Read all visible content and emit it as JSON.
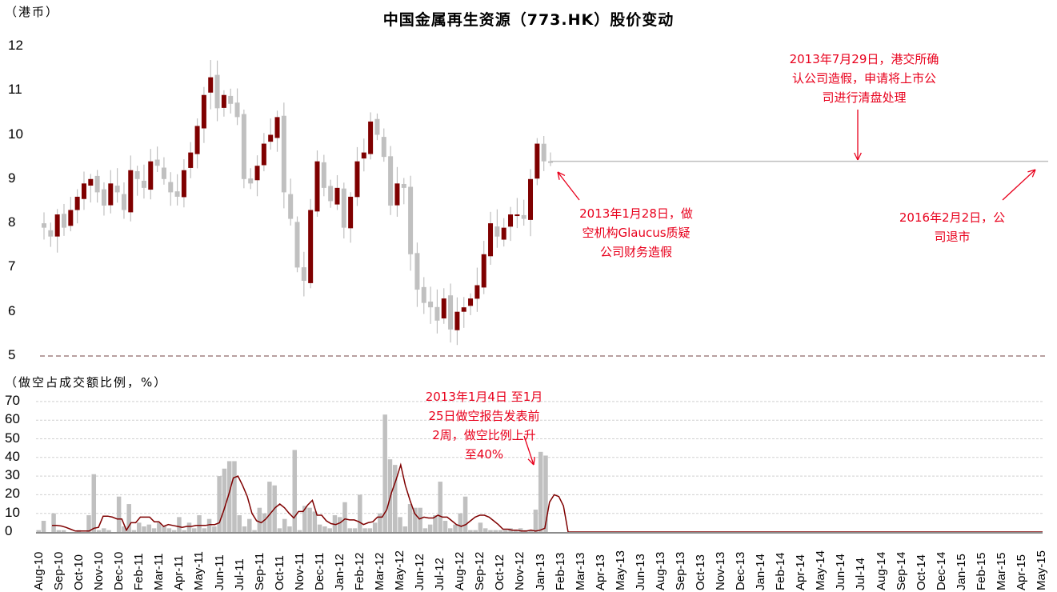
{
  "title": "中国金属再生资源（773.HK）股价变动",
  "upper_unit": "（港币）",
  "lower_unit": "（做空占成交额比例，%）",
  "colors": {
    "up": "#7f0000",
    "down": "#c0c0c0",
    "line": "#7f0000",
    "annotation": "#e8001c",
    "flat_line": "#bfbfbf",
    "axis_dash": "#a08080"
  },
  "annotations": {
    "a1": [
      "2013年7月29日，港交所确",
      "认公司造假，申请将上市公",
      "司进行清盘处理"
    ],
    "a2": [
      "2013年1月28日，做",
      "空机构Glaucus质疑",
      "公司财务造假"
    ],
    "a3": [
      "2016年2月2日，公",
      "司退市"
    ],
    "a4": [
      "2013年1月4日 至1月",
      "25日做空报告发表前",
      "2周，做空比例上升",
      "至40%"
    ]
  },
  "chart_data": [
    {
      "type": "candlestick",
      "title": "中国金属再生资源（773.HK）股价变动",
      "ylabel": "港币",
      "ylim": [
        5,
        12
      ],
      "yticks": [
        5,
        6,
        7,
        8,
        9,
        10,
        11,
        12
      ],
      "x_labels": [
        "Aug-10",
        "Sep-10",
        "Oct-10",
        "Nov-10",
        "Dec-10",
        "Feb-11",
        "Mar-11",
        "Apr-11",
        "May-11",
        "Jun-11",
        "Jul-11",
        "Sep-11",
        "Oct-11",
        "Nov-11",
        "Dec-11",
        "Jan-12",
        "Feb-12",
        "Mar-12",
        "May-12",
        "Jun-12",
        "Jul-12",
        "Aug-12",
        "Sep-12",
        "Oct-12",
        "Nov-12",
        "Jan-13",
        "Feb-13",
        "Mar-13",
        "Apr-13",
        "May-13",
        "Jun-13",
        "Aug-13",
        "Sep-13",
        "Oct-13",
        "Nov-13",
        "Dec-13",
        "Jan-14",
        "Feb-14",
        "Apr-14",
        "May-14",
        "Jun-14",
        "Jul-14",
        "Aug-14",
        "Sep-14",
        "Oct-14",
        "Dec-14",
        "Jan-15",
        "Feb-15",
        "Mar-15",
        "Apr-15",
        "May-15"
      ],
      "approx_close_path": [
        7.9,
        7.7,
        8.2,
        7.9,
        8.3,
        8.6,
        8.9,
        9.0,
        8.7,
        8.4,
        8.9,
        8.7,
        8.3,
        9.2,
        9.0,
        8.8,
        9.4,
        9.3,
        9.0,
        8.7,
        8.6,
        9.2,
        9.6,
        10.2,
        10.9,
        11.3,
        10.6,
        10.9,
        10.7,
        10.4,
        9.0,
        8.9,
        9.3,
        9.8,
        10.0,
        10.4,
        8.7,
        8.1,
        7.0,
        6.7,
        8.3,
        9.4,
        8.8,
        8.5,
        8.8,
        7.9,
        8.6,
        9.4,
        9.6,
        10.3,
        10.0,
        9.5,
        8.4,
        8.9,
        8.8,
        7.3,
        6.5,
        6.2,
        6.1,
        5.8,
        6.3,
        5.6,
        6.0,
        6.1,
        6.3,
        6.6,
        7.3,
        8.0,
        7.7,
        7.9,
        8.2,
        8.2,
        8.1,
        9.0,
        9.8,
        9.4,
        9.4
      ],
      "high": 11.7,
      "low": 5.2,
      "flat_after_suspension": 9.4,
      "annotation_points": [
        {
          "label": "2013-01-28 Glaucus report",
          "price": 9.4
        },
        {
          "label": "2013-07-29 HKEx confirms fraud",
          "price": 9.4
        },
        {
          "label": "2016-02-02 delisted",
          "price": 9.4
        }
      ]
    },
    {
      "type": "bar+line",
      "ylabel": "做空占成交额比例，%",
      "ylim": [
        0,
        70
      ],
      "yticks": [
        0,
        10,
        20,
        30,
        40,
        50,
        60,
        70
      ],
      "series": [
        {
          "name": "short selling ratio (weekly, bars)",
          "values": [
            1,
            6,
            0,
            10,
            1,
            1,
            0,
            0,
            1,
            0,
            9,
            31,
            1,
            2,
            1,
            0,
            19,
            3,
            15,
            1,
            5,
            3,
            4,
            2,
            5,
            3,
            2,
            1,
            8,
            1,
            5,
            2,
            9,
            2,
            7,
            3,
            30,
            34,
            38,
            38,
            9,
            3,
            7,
            1,
            13,
            10,
            27,
            25,
            2,
            7,
            3,
            44,
            1,
            14,
            13,
            11,
            4,
            3,
            2,
            9,
            8,
            16,
            2,
            2,
            20,
            2,
            2,
            5,
            10,
            63,
            39,
            36,
            8,
            3,
            15,
            13,
            13,
            2,
            4,
            9,
            27,
            6,
            2,
            4,
            10,
            19,
            1,
            1,
            5,
            2,
            1,
            1,
            1,
            1,
            2,
            1,
            2,
            1,
            1,
            12,
            43,
            41,
            0
          ]
        },
        {
          "name": "moving average (line)",
          "values": [
            3.5,
            3.5,
            3.2,
            2.5,
            1.5,
            0.5,
            0.5,
            0.5,
            0.5,
            2,
            2.5,
            8.5,
            8.5,
            8,
            7,
            7,
            1,
            5,
            5,
            8,
            8,
            8,
            5.5,
            5.5,
            3,
            4,
            3.5,
            3,
            2.5,
            3,
            3,
            3.5,
            3.5,
            3.5,
            4,
            4,
            5,
            12,
            20,
            29,
            30,
            25,
            19,
            10,
            6,
            5,
            7,
            10,
            13,
            15,
            13,
            10,
            7.5,
            11,
            11,
            14.5,
            17,
            9,
            9,
            6,
            4.5,
            4,
            5,
            7,
            6.5,
            6.5,
            5.5,
            4,
            5,
            5.5,
            8,
            8,
            12,
            21,
            28,
            36,
            25,
            17,
            10,
            7,
            8,
            7.5,
            7.5,
            9,
            8,
            8,
            6,
            4,
            3,
            4,
            6,
            8,
            9,
            9,
            8,
            6,
            4,
            1.5,
            1.5,
            1,
            1,
            0.5,
            0.5,
            1,
            0.5,
            1,
            2,
            16,
            20,
            19,
            14,
            0
          ]
        }
      ],
      "peak_annotation": "2013年1月4日至1月25日做空报告发表前2周，做空比例上升至40%"
    }
  ]
}
